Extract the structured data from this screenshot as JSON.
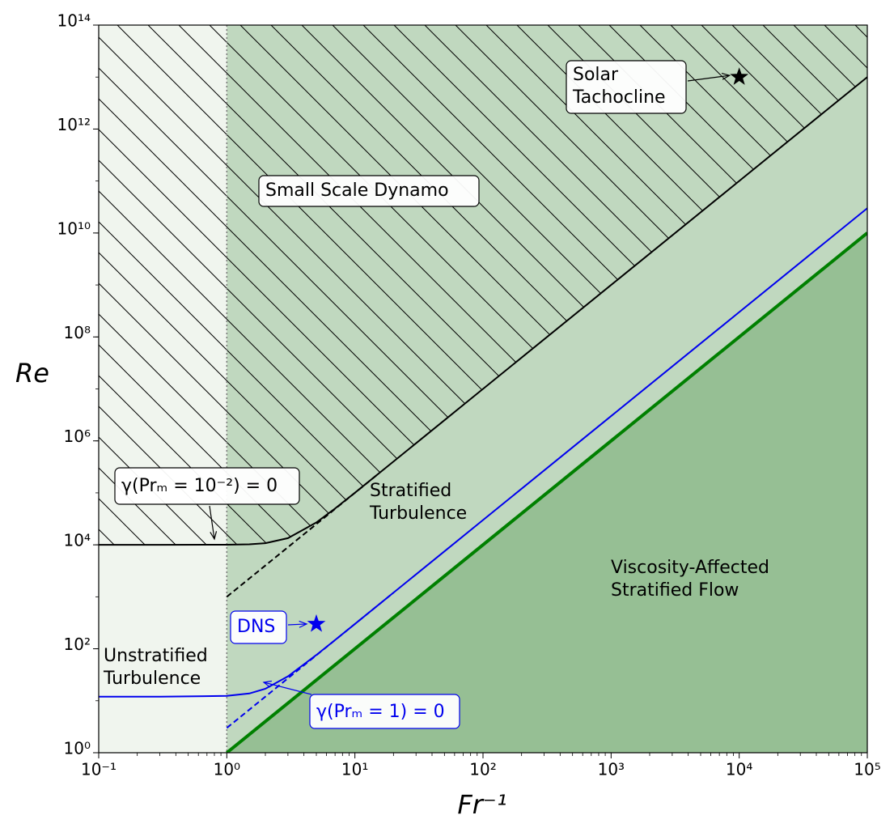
{
  "chart_data": {
    "type": "line",
    "xlabel": "Fr⁻¹",
    "ylabel": "Re",
    "log_x": true,
    "log_y": true,
    "xlim": [
      0.1,
      100000
    ],
    "ylim": [
      1,
      100000000000000
    ],
    "xticks": [
      {
        "value": 0.1,
        "label": "10⁻¹"
      },
      {
        "value": 1,
        "label": "10⁰"
      },
      {
        "value": 10,
        "label": "10¹"
      },
      {
        "value": 100,
        "label": "10²"
      },
      {
        "value": 1000,
        "label": "10³"
      },
      {
        "value": 10000,
        "label": "10⁴"
      },
      {
        "value": 100000,
        "label": "10⁵"
      }
    ],
    "yticks": [
      {
        "value": 1,
        "label": "10⁰"
      },
      {
        "value": 100,
        "label": "10²"
      },
      {
        "value": 10000,
        "label": "10⁴"
      },
      {
        "value": 1000000,
        "label": "10⁶"
      },
      {
        "value": 100000000,
        "label": "10⁸"
      },
      {
        "value": 10000000000,
        "label": "10¹⁰"
      },
      {
        "value": 1000000000000,
        "label": "10¹²"
      },
      {
        "value": 100000000000000,
        "label": "10¹⁴"
      }
    ],
    "vline": 1,
    "shade_left": "#f0f5ee",
    "shade_right": "#c0d8bf",
    "series": [
      {
        "color": "#000000",
        "width": 2,
        "hatch": true,
        "x": [
          0.1,
          0.3,
          1,
          1.5,
          2,
          3,
          5,
          7,
          10,
          20,
          50,
          100,
          1000,
          10000,
          100000
        ],
        "values": [
          10000,
          10000,
          10050,
          10250,
          10770,
          13454,
          26926,
          50010,
          100499,
          400125,
          2500000,
          10000000,
          1000000000,
          100000000000,
          10000000000000
        ]
      },
      {
        "color": "#000000",
        "width": 2,
        "dashed": true,
        "x": [
          1,
          15
        ],
        "values": [
          1000,
          225000
        ]
      },
      {
        "color": "#0000ee",
        "width": 2,
        "x": [
          0.1,
          0.3,
          1,
          1.5,
          2,
          3,
          5,
          7,
          10,
          20,
          50,
          100,
          1000,
          10000,
          100000
        ],
        "values": [
          12,
          12,
          12.4,
          13.8,
          17,
          29.5,
          76,
          147.5,
          300,
          1200,
          7500,
          30000,
          3000000,
          300000000,
          30000000000
        ]
      },
      {
        "color": "#0000ee",
        "width": 2,
        "dashed": true,
        "x": [
          1,
          20
        ],
        "values": [
          3,
          1200
        ]
      },
      {
        "color": "#008000",
        "width": 4,
        "fill_below": "#96bf94",
        "x": [
          1,
          100000
        ],
        "values": [
          1,
          10000000000
        ]
      }
    ],
    "points": [
      {
        "x": 10000,
        "y": 10000000000000,
        "color": "#000000"
      },
      {
        "x": 5,
        "y": 300,
        "color": "#0000ee"
      }
    ],
    "annotations": [
      {
        "text": [
          "Solar",
          "Tachocline"
        ],
        "color": "#000000",
        "box": true
      },
      {
        "text": [
          "Small Scale Dynamo"
        ],
        "color": "#000000",
        "box": true
      },
      {
        "text": [
          "γ(Prₘ = 10⁻²) = 0"
        ],
        "color": "#000000",
        "box": true
      },
      {
        "text": [
          "Stratified",
          "Turbulence"
        ],
        "color": "#000000",
        "box": false
      },
      {
        "text": [
          "Viscosity-Affected",
          "Stratified Flow"
        ],
        "color": "#000000",
        "box": false
      },
      {
        "text": [
          "Unstratified",
          "Turbulence"
        ],
        "color": "#000000",
        "box": false
      },
      {
        "text": [
          "DNS"
        ],
        "color": "#0000ee",
        "box": true
      },
      {
        "text": [
          "γ(Prₘ = 1) = 0"
        ],
        "color": "#0000ee",
        "box": true
      }
    ]
  }
}
